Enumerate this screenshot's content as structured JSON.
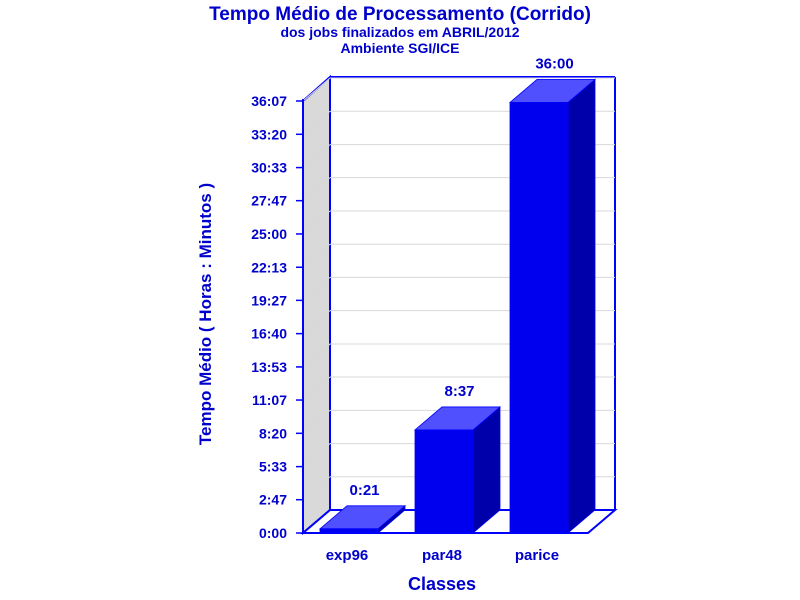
{
  "chart_data": {
    "type": "bar",
    "title": "Tempo Médio de Processamento (Corrido)",
    "subtitle1": "dos jobs finalizados em ABRIL/2012",
    "subtitle2": "Ambiente SGI/ICE",
    "xlabel": "Classes",
    "ylabel": "Tempo Médio ( Horas : Minutos )",
    "categories": [
      "exp96",
      "par48",
      "parice"
    ],
    "values_minutes": [
      21,
      517,
      2160
    ],
    "data_labels": [
      "0:21",
      "8:37",
      "36:00"
    ],
    "ylim_minutes": [
      0,
      2167
    ],
    "y_ticks": [
      {
        "label": "0:00",
        "minutes": 0
      },
      {
        "label": "2:47",
        "minutes": 167
      },
      {
        "label": "5:33",
        "minutes": 333
      },
      {
        "label": "8:20",
        "minutes": 500
      },
      {
        "label": "11:07",
        "minutes": 667
      },
      {
        "label": "13:53",
        "minutes": 833
      },
      {
        "label": "16:40",
        "minutes": 1000
      },
      {
        "label": "19:27",
        "minutes": 1167
      },
      {
        "label": "22:13",
        "minutes": 1333
      },
      {
        "label": "25:00",
        "minutes": 1500
      },
      {
        "label": "27:47",
        "minutes": 1667
      },
      {
        "label": "30:33",
        "minutes": 1833
      },
      {
        "label": "33:20",
        "minutes": 2000
      },
      {
        "label": "36:07",
        "minutes": 2167
      }
    ],
    "colors": {
      "text": "#0000cc",
      "bar_front": "#0000ee",
      "bar_top": "#5050ff",
      "bar_side": "#0000aa",
      "axis": "#0000ff",
      "wall": "#d9d9d9",
      "grid": "#d8d8d8"
    }
  }
}
